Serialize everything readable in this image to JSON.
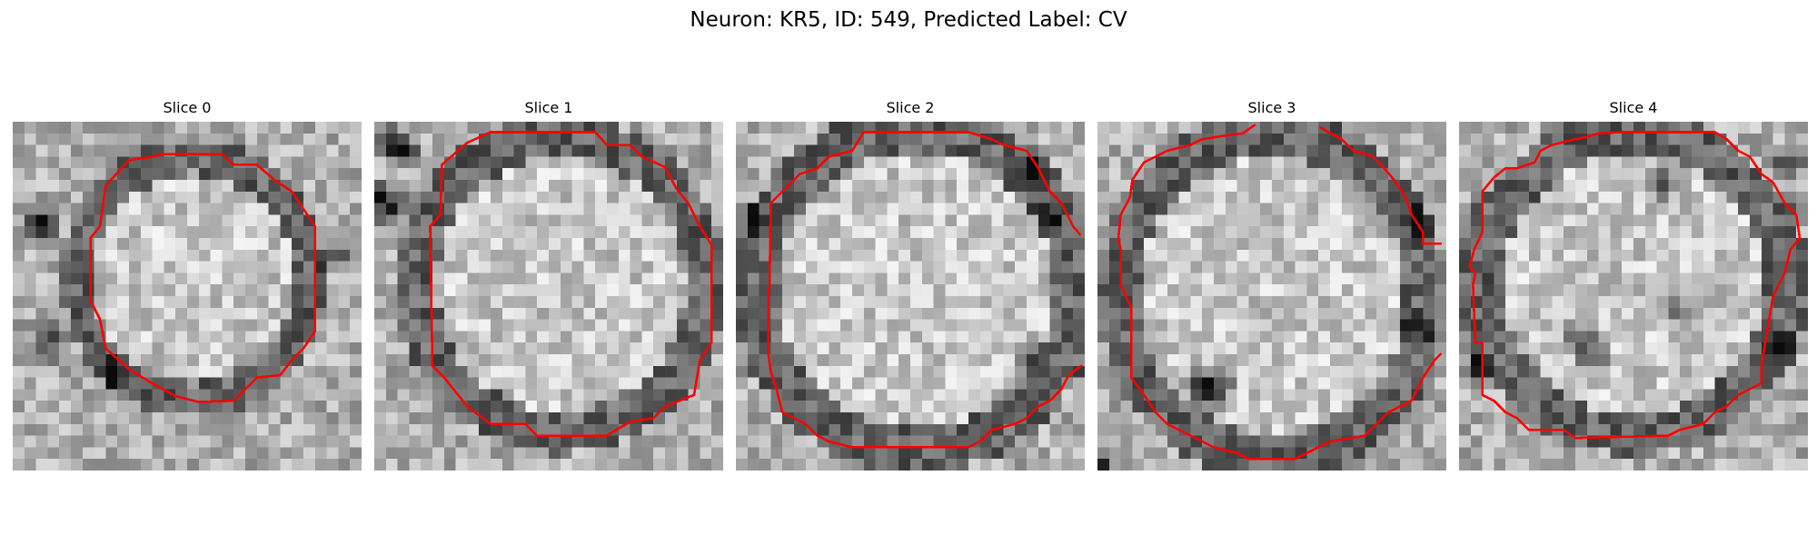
{
  "figure": {
    "title": "Neuron: KR5, ID: 549, Predicted Label: CV"
  },
  "colors": {
    "background": "#ffffff",
    "contour": "#ff0000",
    "colormap": "grayscale"
  },
  "panels": [
    {
      "title": "Slice 0"
    },
    {
      "title": "Slice 1"
    },
    {
      "title": "Slice 2"
    },
    {
      "title": "Slice 3"
    },
    {
      "title": "Slice 4"
    }
  ]
}
